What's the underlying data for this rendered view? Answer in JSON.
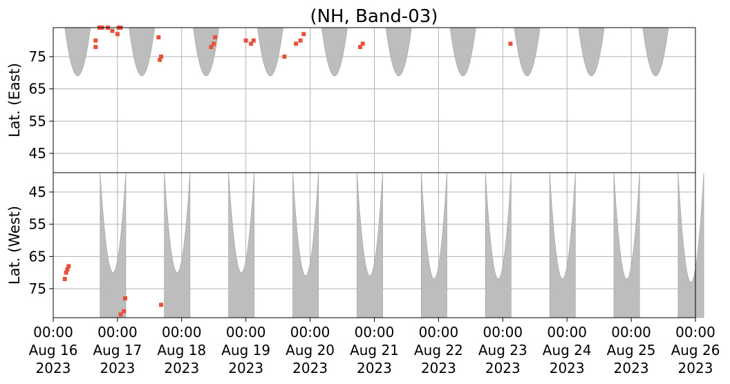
{
  "chart_data": {
    "type": "heatmap",
    "title": "(NH, Band-03)",
    "panels": [
      {
        "name": "east",
        "ylabel": "Lat. (East)",
        "yticks": [
          45,
          55,
          65,
          75
        ],
        "ylim": [
          39,
          84
        ],
        "y_direction": "up",
        "gray_regions": [
          {
            "lon_center": 0.38,
            "half_width": 0.2,
            "lat_min": 69,
            "lat_max": 84
          },
          {
            "lon_center": 1.38,
            "half_width": 0.2,
            "lat_min": 69,
            "lat_max": 84
          },
          {
            "lon_center": 2.38,
            "half_width": 0.2,
            "lat_min": 69,
            "lat_max": 84
          },
          {
            "lon_center": 3.38,
            "half_width": 0.2,
            "lat_min": 69,
            "lat_max": 84
          },
          {
            "lon_center": 4.38,
            "half_width": 0.2,
            "lat_min": 69,
            "lat_max": 84
          },
          {
            "lon_center": 5.38,
            "half_width": 0.2,
            "lat_min": 69,
            "lat_max": 84
          },
          {
            "lon_center": 6.38,
            "half_width": 0.2,
            "lat_min": 69,
            "lat_max": 84
          },
          {
            "lon_center": 7.38,
            "half_width": 0.2,
            "lat_min": 69,
            "lat_max": 84
          },
          {
            "lon_center": 8.38,
            "half_width": 0.2,
            "lat_min": 69,
            "lat_max": 84
          },
          {
            "lon_center": 9.38,
            "half_width": 0.2,
            "lat_min": 69,
            "lat_max": 84
          }
        ],
        "red_points": [
          {
            "x": 0.66,
            "y": 78
          },
          {
            "x": 0.66,
            "y": 80
          },
          {
            "x": 0.72,
            "y": 84
          },
          {
            "x": 0.76,
            "y": 84
          },
          {
            "x": 0.85,
            "y": 84
          },
          {
            "x": 0.92,
            "y": 83
          },
          {
            "x": 1.0,
            "y": 82
          },
          {
            "x": 1.02,
            "y": 84
          },
          {
            "x": 1.05,
            "y": 84
          },
          {
            "x": 1.66,
            "y": 74
          },
          {
            "x": 1.68,
            "y": 75
          },
          {
            "x": 1.64,
            "y": 81
          },
          {
            "x": 2.46,
            "y": 78
          },
          {
            "x": 2.5,
            "y": 79
          },
          {
            "x": 2.52,
            "y": 81
          },
          {
            "x": 3.0,
            "y": 80
          },
          {
            "x": 3.08,
            "y": 79
          },
          {
            "x": 3.12,
            "y": 80
          },
          {
            "x": 3.6,
            "y": 75
          },
          {
            "x": 3.78,
            "y": 79
          },
          {
            "x": 3.85,
            "y": 80
          },
          {
            "x": 3.9,
            "y": 82
          },
          {
            "x": 4.78,
            "y": 78
          },
          {
            "x": 4.82,
            "y": 79
          },
          {
            "x": 7.12,
            "y": 79
          }
        ]
      },
      {
        "name": "west",
        "ylabel": "Lat. (West)",
        "yticks": [
          75,
          65,
          55,
          45
        ],
        "ylim": [
          84,
          39
        ],
        "y_direction": "down",
        "gray_regions": [
          {
            "lon_center": 0.93,
            "half_width": 0.2,
            "lat_min": 39,
            "lat_max": 70
          },
          {
            "lon_center": 1.93,
            "half_width": 0.2,
            "lat_min": 39,
            "lat_max": 70
          },
          {
            "lon_center": 2.93,
            "half_width": 0.2,
            "lat_min": 39,
            "lat_max": 70
          },
          {
            "lon_center": 3.93,
            "half_width": 0.2,
            "lat_min": 39,
            "lat_max": 71
          },
          {
            "lon_center": 4.93,
            "half_width": 0.2,
            "lat_min": 39,
            "lat_max": 71
          },
          {
            "lon_center": 5.93,
            "half_width": 0.2,
            "lat_min": 39,
            "lat_max": 72
          },
          {
            "lon_center": 6.93,
            "half_width": 0.2,
            "lat_min": 39,
            "lat_max": 72
          },
          {
            "lon_center": 7.93,
            "half_width": 0.2,
            "lat_min": 39,
            "lat_max": 72
          },
          {
            "lon_center": 8.93,
            "half_width": 0.2,
            "lat_min": 39,
            "lat_max": 72
          },
          {
            "lon_center": 9.93,
            "half_width": 0.2,
            "lat_min": 39,
            "lat_max": 73
          }
        ],
        "red_points": [
          {
            "x": 1.05,
            "y": 83
          },
          {
            "x": 1.1,
            "y": 82
          },
          {
            "x": 1.12,
            "y": 78
          },
          {
            "x": 1.68,
            "y": 80
          },
          {
            "x": 0.18,
            "y": 72
          },
          {
            "x": 0.2,
            "y": 70
          },
          {
            "x": 0.22,
            "y": 69
          },
          {
            "x": 0.24,
            "y": 68
          }
        ]
      }
    ],
    "x_ticks": [
      {
        "time": "00:00",
        "date": "Aug 16",
        "year": "2023"
      },
      {
        "time": "00:00",
        "date": "Aug 17",
        "year": "2023"
      },
      {
        "time": "00:00",
        "date": "Aug 18",
        "year": "2023"
      },
      {
        "time": "00:00",
        "date": "Aug 19",
        "year": "2023"
      },
      {
        "time": "00:00",
        "date": "Aug 20",
        "year": "2023"
      },
      {
        "time": "00:00",
        "date": "Aug 21",
        "year": "2023"
      },
      {
        "time": "00:00",
        "date": "Aug 22",
        "year": "2023"
      },
      {
        "time": "00:00",
        "date": "Aug 23",
        "year": "2023"
      },
      {
        "time": "00:00",
        "date": "Aug 24",
        "year": "2023"
      },
      {
        "time": "00:00",
        "date": "Aug 25",
        "year": "2023"
      },
      {
        "time": "00:00",
        "date": "Aug 26",
        "year": "2023"
      }
    ],
    "xlim": [
      "2023-08-16 00:00",
      "2023-08-26 00:00"
    ],
    "grid": true,
    "colors": {
      "gray_fill": "#bdbdbd",
      "red_marker": "#e8503a",
      "grid": "#b0b0b0"
    }
  }
}
